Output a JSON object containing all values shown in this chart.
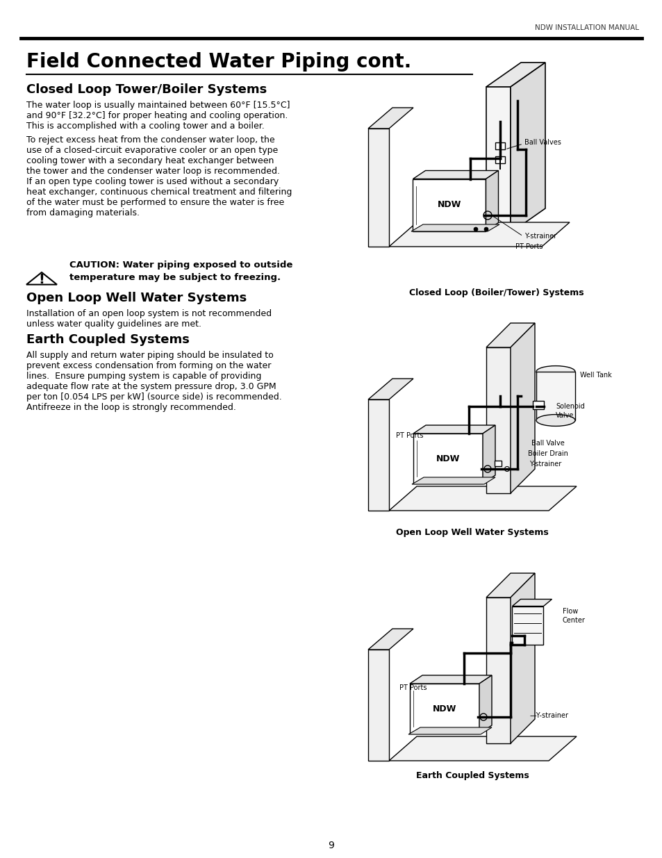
{
  "header_text": "NDW INSTALLATION MANUAL",
  "title": "Field Connected Water Piping cont.",
  "section1_heading": "Closed Loop Tower/Boiler Systems",
  "section1_body1": "The water loop is usually maintained between 60°F [15.5°C]\nand 90°F [32.2°C] for proper heating and cooling operation.\nThis is accomplished with a cooling tower and a boiler.",
  "section1_body2": "To reject excess heat from the condenser water loop, the\nuse of a closed-circuit evaporative cooler or an open type\ncooling tower with a secondary heat exchanger between\nthe tower and the condenser water loop is recommended.\nIf an open type cooling tower is used without a secondary\nheat exchanger, continuous chemical treatment and filtering\nof the water must be performed to ensure the water is free\nfrom damaging materials.",
  "caution_text": "CAUTION: Water piping exposed to outside\ntemperature may be subject to freezing.",
  "section2_heading": "Open Loop Well Water Systems",
  "section2_body": "Installation of an open loop system is not recommended\nunless water quality guidelines are met.",
  "section3_heading": "Earth Coupled Systems",
  "section3_body": "All supply and return water piping should be insulated to\nprevent excess condensation from forming on the water\nlines.  Ensure pumping system is capable of providing\nadequate flow rate at the system pressure drop, 3.0 GPM\nper ton [0.054 LPS per kW] (source side) is recommended.\nAntifreeze in the loop is strongly recommended.",
  "diagram1_caption": "Closed Loop (Boiler/Tower) Systems",
  "diagram2_caption": "Open Loop Well Water Systems",
  "diagram3_caption": "Earth Coupled Systems",
  "page_number": "9",
  "bg_color": "#ffffff",
  "text_color": "#000000",
  "header_line_color": "#000000",
  "title_underline_color": "#000000"
}
